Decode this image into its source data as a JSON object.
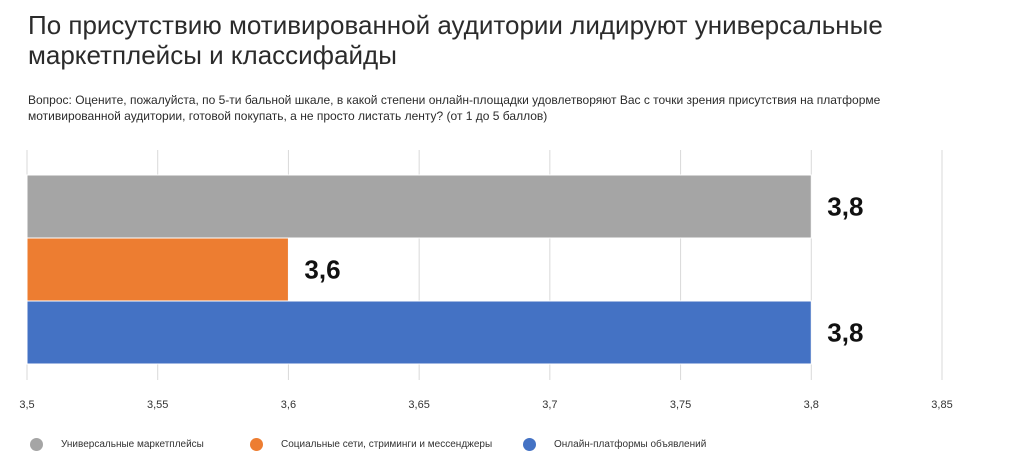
{
  "title": "По присутствию мотивированной аудитории лидируют универсальные маркетплейсы и классифайды",
  "question": "Вопрос: Оцените, пожалуйста, по 5-ти бальной шкале, в какой степени онлайн-площадки удовлетворяют Вас с точки зрения присутствия на платформе мотивированной аудитории, готовой покупать, а не просто листать ленту? (от 1 до 5 баллов)",
  "chart_data": {
    "type": "bar",
    "orientation": "horizontal",
    "title": "По присутствию мотивированной аудитории лидируют универсальные маркетплейсы и классифайды",
    "xlabel": "",
    "ylabel": "",
    "xlim": [
      3.5,
      3.85
    ],
    "ticks": [
      "3,5",
      "3,55",
      "3,6",
      "3,65",
      "3,7",
      "3,75",
      "3,8",
      "3,85"
    ],
    "tick_values": [
      3.5,
      3.55,
      3.6,
      3.65,
      3.7,
      3.75,
      3.8,
      3.85
    ],
    "grid": true,
    "legend_position": "bottom",
    "series": [
      {
        "name": "Универсальные маркетплейсы",
        "value": 3.8,
        "label": "3,8",
        "color": "#a5a5a5"
      },
      {
        "name": "Социальные сети, стриминги и мессенджеры",
        "value": 3.6,
        "label": "3,6",
        "color": "#ed7d31"
      },
      {
        "name": "Онлайн-платформы объявлений",
        "value": 3.8,
        "label": "3,8",
        "color": "#4472c4"
      }
    ]
  }
}
